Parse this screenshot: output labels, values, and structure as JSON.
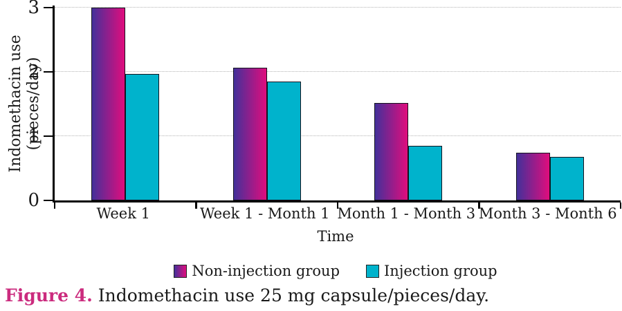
{
  "chart_data": {
    "type": "bar",
    "title": "",
    "xlabel": "Time",
    "ylabel": "Indomethacin use (pieces/day)",
    "categories": [
      "Week 1",
      "Week 1 - Month 1",
      "Month 1 - Month 3",
      "Month 3 - Month 6"
    ],
    "series": [
      {
        "name": "Non-injection group",
        "gradient": [
          "#43309a",
          "#e00d7d"
        ],
        "values": [
          3.0,
          2.06,
          1.52,
          0.74
        ]
      },
      {
        "name": "Injection group",
        "color": "#00b3cc",
        "values": [
          1.97,
          1.85,
          0.85,
          0.68
        ]
      }
    ],
    "ylim": [
      0,
      3
    ],
    "yticks": [
      0,
      1,
      2,
      3
    ],
    "grid": "horizontal-dotted",
    "legend_position": "bottom-center"
  },
  "caption": {
    "label": "Figure 4.",
    "text": " Indomethacin use 25 mg capsule/pieces/day.",
    "label_color": "#cb2b7e"
  },
  "palette": {
    "axis": "#000000",
    "gridline": "#b3b3b3",
    "bar_border": "#15131f",
    "text": "#1a1a1a"
  }
}
